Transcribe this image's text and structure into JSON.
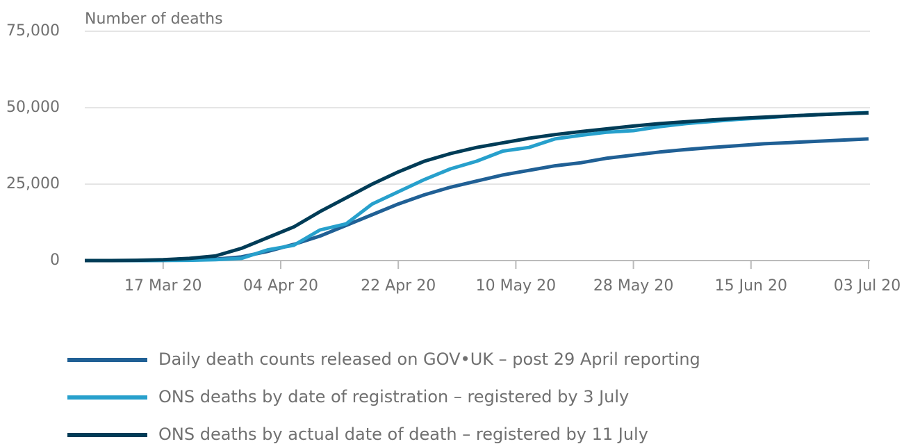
{
  "chart_data": {
    "type": "line",
    "y_label": "Number of deaths",
    "x": [
      "2020-03-05",
      "2020-03-09",
      "2020-03-13",
      "2020-03-17",
      "2020-03-21",
      "2020-03-25",
      "2020-03-29",
      "2020-04-02",
      "2020-04-06",
      "2020-04-10",
      "2020-04-14",
      "2020-04-18",
      "2020-04-22",
      "2020-04-26",
      "2020-04-30",
      "2020-05-04",
      "2020-05-08",
      "2020-05-12",
      "2020-05-16",
      "2020-05-20",
      "2020-05-24",
      "2020-05-28",
      "2020-06-01",
      "2020-06-05",
      "2020-06-09",
      "2020-06-13",
      "2020-06-17",
      "2020-06-21",
      "2020-06-25",
      "2020-06-29",
      "2020-07-03"
    ],
    "series": [
      {
        "name": "Daily death counts released on GOV•UK – post 29 April reporting",
        "color": "#206095",
        "values": [
          0,
          10,
          10,
          70,
          230,
          450,
          1200,
          3000,
          5300,
          8000,
          11500,
          15000,
          18500,
          21500,
          24000,
          26000,
          28000,
          29500,
          31000,
          32000,
          33500,
          34500,
          35500,
          36300,
          37000,
          37600,
          38200,
          38600,
          39000,
          39400,
          39800
        ]
      },
      {
        "name": "ONS deaths by date of registration – registered by 3 July",
        "color": "#27a0cc",
        "values": [
          0,
          0,
          0,
          50,
          100,
          300,
          700,
          3500,
          5000,
          10000,
          12000,
          18500,
          22500,
          26500,
          30000,
          32500,
          35800,
          37000,
          39800,
          41000,
          42000,
          42500,
          43800,
          44800,
          45500,
          46200,
          46700,
          47300,
          47700,
          48100,
          48400
        ]
      },
      {
        "name": "ONS deaths by actual date of death – registered by 11 July",
        "color": "#003c57",
        "values": [
          0,
          0,
          100,
          300,
          700,
          1500,
          4000,
          7500,
          11000,
          16000,
          20500,
          25000,
          29000,
          32500,
          35000,
          37000,
          38500,
          40000,
          41200,
          42200,
          43100,
          44000,
          44800,
          45400,
          46000,
          46500,
          46900,
          47300,
          47700,
          48000,
          48300
        ]
      }
    ],
    "xlim": [
      "2020-03-05",
      "2020-07-03"
    ],
    "xticks": [
      {
        "value": "2020-03-17",
        "label": "17 Mar 20"
      },
      {
        "value": "2020-04-04",
        "label": "04 Apr 20"
      },
      {
        "value": "2020-04-22",
        "label": "22 Apr 20"
      },
      {
        "value": "2020-05-10",
        "label": "10 May 20"
      },
      {
        "value": "2020-05-28",
        "label": "28 May 20"
      },
      {
        "value": "2020-06-15",
        "label": "15 Jun 20"
      },
      {
        "value": "2020-07-03",
        "label": "03 Jul 20"
      }
    ],
    "ylim": [
      0,
      75000
    ],
    "yticks": [
      0,
      {
        "value": 25000,
        "label": "25,000"
      },
      {
        "value": 50000,
        "label": "50,000"
      },
      {
        "value": 75000,
        "label": "75,000"
      }
    ],
    "grid": true
  }
}
